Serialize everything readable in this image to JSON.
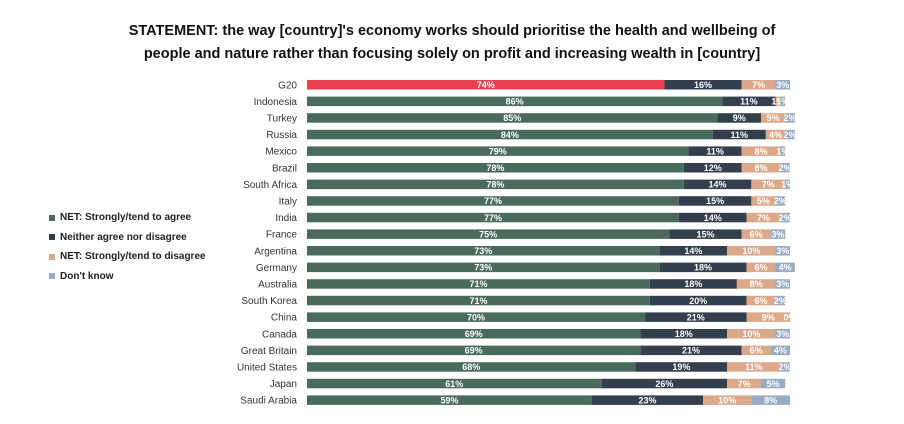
{
  "chart_data": {
    "type": "bar",
    "orientation": "horizontal",
    "stacked": true,
    "title": "STATEMENT: the way [country]'s economy works should prioritise the health and wellbeing of people and nature rather than focusing solely on profit and increasing wealth in [country]",
    "title_lines": [
      "STATEMENT: the way [country]'s economy works should prioritise the health and wellbeing of",
      "people and nature rather than focusing solely on profit and increasing wealth in [country]"
    ],
    "legend_position": "left",
    "grid": false,
    "xlim": [
      0,
      100
    ],
    "categories": [
      "G20",
      "Indonesia",
      "Turkey",
      "Russia",
      "Mexico",
      "Brazil",
      "South Africa",
      "Italy",
      "India",
      "France",
      "Argentina",
      "Germany",
      "Australia",
      "South Korea",
      "China",
      "Canada",
      "Great Britain",
      "United States",
      "Japan",
      "Saudi Arabia"
    ],
    "series": [
      {
        "name": "NET: Strongly/tend to agree",
        "color": "#4a6b5c",
        "values": [
          74,
          86,
          85,
          84,
          79,
          78,
          78,
          77,
          77,
          75,
          73,
          73,
          71,
          71,
          70,
          69,
          69,
          68,
          61,
          59
        ]
      },
      {
        "name": "Neither agree nor disagree",
        "color": "#333f4d",
        "values": [
          16,
          11,
          9,
          11,
          11,
          12,
          14,
          15,
          14,
          15,
          14,
          18,
          18,
          20,
          21,
          18,
          21,
          19,
          26,
          23
        ]
      },
      {
        "name": "NET: Strongly/tend to disagree",
        "color": "#dca88a",
        "values": [
          7,
          1,
          5,
          4,
          8,
          8,
          7,
          5,
          7,
          6,
          10,
          6,
          8,
          6,
          9,
          10,
          6,
          11,
          7,
          10
        ]
      },
      {
        "name": "Don't know",
        "color": "#97acc2",
        "values": [
          3,
          1,
          2,
          2,
          1,
          2,
          1,
          2,
          2,
          3,
          3,
          4,
          3,
          2,
          0,
          3,
          4,
          2,
          5,
          8
        ]
      }
    ],
    "highlight": {
      "category": "G20",
      "series": "NET: Strongly/tend to agree",
      "color": "#e8404e"
    }
  }
}
